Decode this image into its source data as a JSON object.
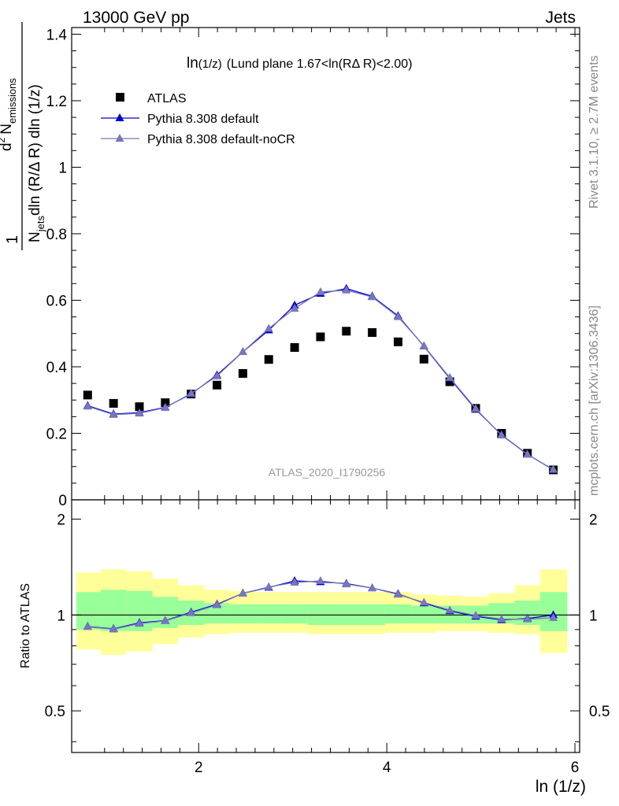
{
  "header": {
    "left": "13000 GeV pp",
    "right": "Jets"
  },
  "side_labels": {
    "rivet": "Rivet 3.1.10, ≥ 2.7M events",
    "mcplots": "mcplots.cern.ch [arXiv:1306.3436]"
  },
  "chart_data": [
    {
      "type": "scatter",
      "panel": "main",
      "title_main": "ln",
      "title_sub": "(1/z)",
      "title_rest": "(Lund plane 1.67<ln(RΔ R)<2.00)",
      "ylabel_parts": {
        "one": "1",
        "d2": "d",
        "two": "2",
        "N": "N",
        "emissions": "emissions",
        "den1": "N",
        "jets": "jets",
        "den2": "dln (R/Δ R) dln (1/z)"
      },
      "watermark": "ATLAS_2020_I1790256",
      "xlim": [
        0.65,
        6.05
      ],
      "ylim": [
        0.0,
        1.42
      ],
      "y_tick_labels": [
        "0",
        "0.2",
        "0.4",
        "0.6",
        "0.8",
        "1",
        "1.2",
        "1.4"
      ],
      "x": [
        0.82,
        1.095,
        1.37,
        1.645,
        1.92,
        2.195,
        2.47,
        2.745,
        3.02,
        3.295,
        3.57,
        3.845,
        4.12,
        4.395,
        4.67,
        4.945,
        5.22,
        5.495,
        5.77
      ],
      "legend_position": "top-left",
      "series": [
        {
          "name": "ATLAS",
          "marker": "square",
          "color": "#000000",
          "values": [
            0.315,
            0.29,
            0.28,
            0.292,
            0.318,
            0.345,
            0.38,
            0.422,
            0.458,
            0.49,
            0.507,
            0.503,
            0.475,
            0.423,
            0.355,
            0.275,
            0.2,
            0.14,
            0.09
          ]
        },
        {
          "name": "Pythia 8.308 default",
          "marker": "triangle",
          "color": "#0000cc",
          "values": [
            0.283,
            0.258,
            0.262,
            0.278,
            0.318,
            0.375,
            0.445,
            0.51,
            0.585,
            0.62,
            0.635,
            0.612,
            0.553,
            0.462,
            0.365,
            0.272,
            0.195,
            0.137,
            0.09
          ]
        },
        {
          "name": "Pythia 8.308 default-noCR",
          "marker": "triangle",
          "color": "#7777bb",
          "values": [
            0.281,
            0.256,
            0.26,
            0.277,
            0.32,
            0.372,
            0.445,
            0.515,
            0.575,
            0.625,
            0.63,
            0.61,
            0.55,
            0.463,
            0.367,
            0.274,
            0.194,
            0.136,
            0.091
          ]
        }
      ]
    },
    {
      "type": "line",
      "panel": "ratio",
      "xlabel": "ln (1/z)",
      "ylabel": "Ratio to ATLAS",
      "xlim": [
        0.65,
        6.05
      ],
      "ylim": [
        0.37,
        2.3
      ],
      "x_tick_labels": [
        "2",
        "4",
        "6"
      ],
      "y_tick_labels": [
        "0.5",
        "1",
        "2"
      ],
      "x": [
        0.82,
        1.095,
        1.37,
        1.645,
        1.92,
        2.195,
        2.47,
        2.745,
        3.02,
        3.295,
        3.57,
        3.845,
        4.12,
        4.395,
        4.67,
        4.945,
        5.22,
        5.495,
        5.77
      ],
      "band_edges": [
        0.7,
        0.96,
        1.23,
        1.51,
        1.78,
        2.06,
        2.33,
        2.61,
        2.88,
        3.16,
        3.43,
        3.71,
        3.98,
        4.26,
        4.53,
        4.81,
        5.08,
        5.36,
        5.63,
        5.92
      ],
      "band_inner": {
        "color": "#99ff99",
        "lo": [
          0.9,
          0.89,
          0.89,
          0.91,
          0.93,
          0.94,
          0.94,
          0.94,
          0.94,
          0.93,
          0.93,
          0.93,
          0.94,
          0.94,
          0.94,
          0.94,
          0.94,
          0.93,
          0.89
        ],
        "hi": [
          1.18,
          1.2,
          1.19,
          1.14,
          1.11,
          1.09,
          1.08,
          1.08,
          1.08,
          1.08,
          1.08,
          1.08,
          1.08,
          1.07,
          1.07,
          1.07,
          1.09,
          1.11,
          1.18
        ]
      },
      "band_outer": {
        "color": "#ffff99",
        "lo": [
          0.78,
          0.75,
          0.77,
          0.81,
          0.85,
          0.87,
          0.88,
          0.88,
          0.88,
          0.87,
          0.87,
          0.87,
          0.88,
          0.88,
          0.89,
          0.89,
          0.88,
          0.87,
          0.76
        ],
        "hi": [
          1.36,
          1.39,
          1.37,
          1.3,
          1.24,
          1.2,
          1.19,
          1.18,
          1.18,
          1.18,
          1.18,
          1.18,
          1.18,
          1.16,
          1.15,
          1.14,
          1.17,
          1.24,
          1.39
        ]
      },
      "series": [
        {
          "name": "Pythia 8.308 default",
          "color": "#0000cc",
          "values": [
            0.92,
            0.905,
            0.945,
            0.96,
            1.02,
            1.08,
            1.17,
            1.22,
            1.28,
            1.27,
            1.255,
            1.215,
            1.165,
            1.09,
            1.03,
            0.99,
            0.965,
            0.975,
            1.0
          ]
        },
        {
          "name": "Pythia 8.308 default-noCR",
          "color": "#7777bb",
          "values": [
            0.918,
            0.902,
            0.94,
            0.958,
            1.015,
            1.075,
            1.17,
            1.225,
            1.265,
            1.28,
            1.25,
            1.215,
            1.16,
            1.095,
            1.035,
            0.996,
            0.97,
            0.97,
            0.98
          ]
        }
      ]
    }
  ]
}
